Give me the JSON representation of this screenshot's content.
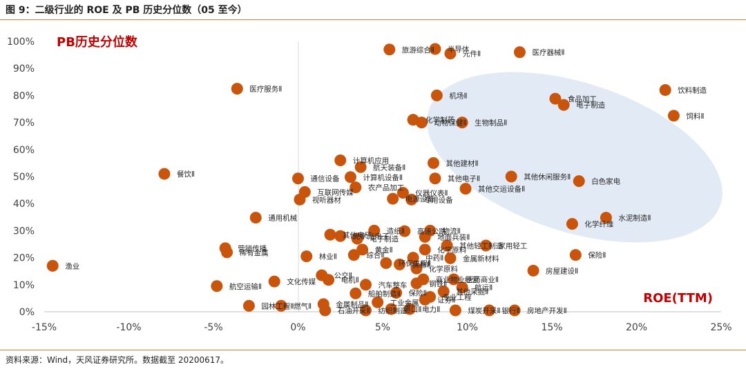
{
  "header": {
    "title": "图 9：二级行业的 ROE 及 PB 历史分位数（05 至今）"
  },
  "footer": {
    "source": "资料来源：Wind，天风证券研究所。数据截至 20200617。"
  },
  "colors": {
    "accent": "#e07b39",
    "point": "#c9550c",
    "title_red": "#c00000",
    "ellipse": "#dde8f3"
  },
  "chart_data": {
    "type": "scatter",
    "ylabel": "PB历史分位数",
    "xlabel": "ROE(TTM)",
    "xlim": [
      -0.15,
      0.25
    ],
    "ylim": [
      0,
      1.0
    ],
    "x_ticks": [
      "-15%",
      "-10%",
      "-5%",
      "0%",
      "5%",
      "10%",
      "15%",
      "20%",
      "25%"
    ],
    "y_ticks": [
      "0%",
      "10%",
      "20%",
      "30%",
      "40%",
      "50%",
      "60%",
      "70%",
      "80%",
      "90%",
      "100%"
    ],
    "grid": false,
    "highlight": "ellipse",
    "points": [
      {
        "name": "渔业",
        "x": -0.145,
        "y": 0.17
      },
      {
        "name": "餐饮Ⅱ",
        "x": -0.079,
        "y": 0.51
      },
      {
        "name": "医疗服务Ⅱ",
        "x": -0.036,
        "y": 0.825
      },
      {
        "name": "通用机械",
        "x": -0.025,
        "y": 0.348
      },
      {
        "name": "营销传播",
        "x": -0.043,
        "y": 0.235
      },
      {
        "name": "稀有金属",
        "x": -0.042,
        "y": 0.22
      },
      {
        "name": "航空运输Ⅱ",
        "x": -0.048,
        "y": 0.095
      },
      {
        "name": "文化传媒",
        "x": -0.014,
        "y": 0.112
      },
      {
        "name": "园林工程Ⅱ",
        "x": -0.029,
        "y": 0.022
      },
      {
        "name": "燃气Ⅱ",
        "x": -0.01,
        "y": 0.022
      },
      {
        "name": "林业Ⅱ",
        "x": 0.005,
        "y": 0.205
      },
      {
        "name": "通信设备",
        "x": 0.0,
        "y": 0.493
      },
      {
        "name": "互联网传媒",
        "x": 0.004,
        "y": 0.443
      },
      {
        "name": "视听器材",
        "x": 0.001,
        "y": 0.415
      },
      {
        "name": "计算机应用",
        "x": 0.025,
        "y": 0.56
      },
      {
        "name": "航天装备Ⅱ",
        "x": 0.037,
        "y": 0.535
      },
      {
        "name": "计算机设备Ⅱ",
        "x": 0.031,
        "y": 0.498
      },
      {
        "name": "农产品加工",
        "x": 0.034,
        "y": 0.46
      },
      {
        "name": "光学光电子",
        "x": 0.025,
        "y": 0.28
      },
      {
        "name": "电子制造",
        "x": 0.035,
        "y": 0.27
      },
      {
        "name": "其他电子",
        "x": 0.019,
        "y": 0.285
      },
      {
        "name": "公交Ⅱ",
        "x": 0.014,
        "y": 0.135
      },
      {
        "name": "电机Ⅱ",
        "x": 0.018,
        "y": 0.118
      },
      {
        "name": "金属制品Ⅱ",
        "x": 0.015,
        "y": 0.028
      },
      {
        "name": "石油开采Ⅱ",
        "x": 0.016,
        "y": 0.005
      },
      {
        "name": "黄金Ⅱ",
        "x": 0.038,
        "y": 0.23
      },
      {
        "name": "综合Ⅱ",
        "x": 0.033,
        "y": 0.21
      },
      {
        "name": "化学制药",
        "x": 0.068,
        "y": 0.71
      },
      {
        "name": "旅游综合Ⅱ",
        "x": 0.054,
        "y": 0.97
      },
      {
        "name": "半导体",
        "x": 0.081,
        "y": 0.972
      },
      {
        "name": "元件Ⅱ",
        "x": 0.09,
        "y": 0.955
      },
      {
        "name": "医疗器械Ⅱ",
        "x": 0.131,
        "y": 0.96
      },
      {
        "name": "机场Ⅱ",
        "x": 0.082,
        "y": 0.8
      },
      {
        "name": "动物保健Ⅱ",
        "x": 0.073,
        "y": 0.7
      },
      {
        "name": "生物制品Ⅱ",
        "x": 0.097,
        "y": 0.7
      },
      {
        "name": "食品加工",
        "x": 0.152,
        "y": 0.788
      },
      {
        "name": "电子制造",
        "x": 0.157,
        "y": 0.765
      },
      {
        "name": "饮料制造",
        "x": 0.217,
        "y": 0.82
      },
      {
        "name": "饲料Ⅱ",
        "x": 0.222,
        "y": 0.725
      },
      {
        "name": "其他建材Ⅱ",
        "x": 0.08,
        "y": 0.55
      },
      {
        "name": "其他电子Ⅱ",
        "x": 0.081,
        "y": 0.493
      },
      {
        "name": "其他休闲服务Ⅱ",
        "x": 0.126,
        "y": 0.5
      },
      {
        "name": "白色家电",
        "x": 0.166,
        "y": 0.483
      },
      {
        "name": "其他交运设备Ⅱ",
        "x": 0.099,
        "y": 0.455
      },
      {
        "name": "仪器仪表Ⅱ",
        "x": 0.062,
        "y": 0.44
      },
      {
        "name": "电源设备",
        "x": 0.056,
        "y": 0.418
      },
      {
        "name": "专用设备",
        "x": 0.067,
        "y": 0.415
      },
      {
        "name": "水泥制造Ⅱ",
        "x": 0.182,
        "y": 0.348
      },
      {
        "name": "化学纤维",
        "x": 0.162,
        "y": 0.325
      },
      {
        "name": "保险Ⅱ",
        "x": 0.164,
        "y": 0.21
      },
      {
        "name": "房屋建设Ⅱ",
        "x": 0.139,
        "y": 0.152
      },
      {
        "name": "造纸Ⅱ",
        "x": 0.045,
        "y": 0.3
      },
      {
        "name": "高速公路",
        "x": 0.063,
        "y": 0.298
      },
      {
        "name": "物流Ⅱ",
        "x": 0.078,
        "y": 0.3
      },
      {
        "name": "地面兵装Ⅱ",
        "x": 0.075,
        "y": 0.277
      },
      {
        "name": "家用轻工",
        "x": 0.111,
        "y": 0.245
      },
      {
        "name": "其他轻工制造",
        "x": 0.088,
        "y": 0.245
      },
      {
        "name": "化学原料",
        "x": 0.075,
        "y": 0.23
      },
      {
        "name": "中药Ⅱ",
        "x": 0.068,
        "y": 0.2
      },
      {
        "name": "金属新材料",
        "x": 0.09,
        "y": 0.198
      },
      {
        "name": "化学原料",
        "x": 0.07,
        "y": 0.16
      },
      {
        "name": "贸易Ⅱ",
        "x": 0.06,
        "y": 0.175
      },
      {
        "name": "环保工程Ⅱ",
        "x": 0.052,
        "y": 0.18
      },
      {
        "name": "商业物业经营",
        "x": 0.074,
        "y": 0.12
      },
      {
        "name": "医药商业Ⅱ",
        "x": 0.092,
        "y": 0.12
      },
      {
        "name": "航运Ⅱ",
        "x": 0.097,
        "y": 0.09
      },
      {
        "name": "钢铁Ⅱ",
        "x": 0.07,
        "y": 0.105
      },
      {
        "name": "汽车整车",
        "x": 0.04,
        "y": 0.1
      },
      {
        "name": "船舶制造Ⅱ",
        "x": 0.034,
        "y": 0.068
      },
      {
        "name": "保险Ⅱ",
        "x": 0.058,
        "y": 0.07
      },
      {
        "name": "其他采掘Ⅱ",
        "x": 0.086,
        "y": 0.075
      },
      {
        "name": "专业工程",
        "x": 0.078,
        "y": 0.055
      },
      {
        "name": "工业金属",
        "x": 0.047,
        "y": 0.035
      },
      {
        "name": "证券Ⅱ",
        "x": 0.075,
        "y": 0.045
      },
      {
        "name": "港口Ⅱ",
        "x": 0.055,
        "y": 0.01
      },
      {
        "name": "电力Ⅱ",
        "x": 0.066,
        "y": 0.01
      },
      {
        "name": "银行Ⅱ",
        "x": 0.113,
        "y": 0.005
      },
      {
        "name": "房地产开发Ⅱ",
        "x": 0.128,
        "y": 0.005
      },
      {
        "name": "煤炭开采Ⅱ",
        "x": 0.093,
        "y": 0.005
      },
      {
        "name": "纺织制造",
        "x": 0.04,
        "y": 0.005
      }
    ]
  }
}
